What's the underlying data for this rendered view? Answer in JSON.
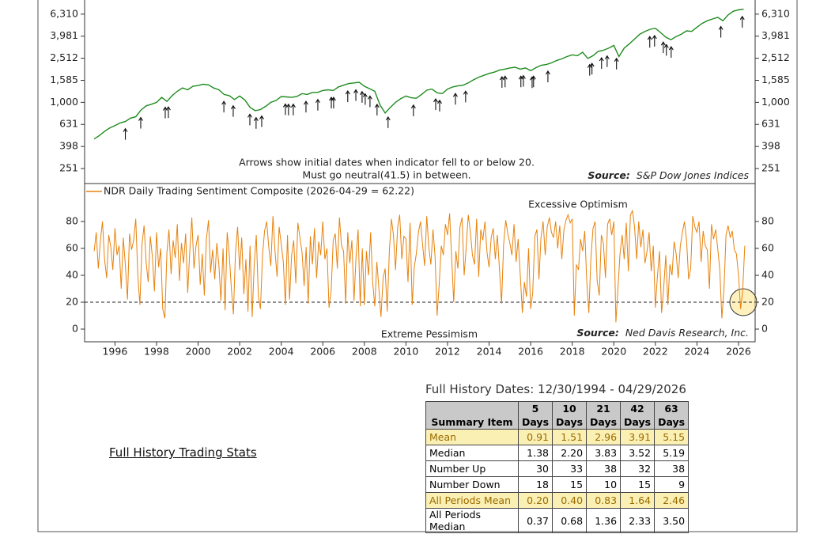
{
  "chart_data": [
    {
      "type": "line",
      "scale": "log",
      "color": "#1f8c1f",
      "annotation_lines": [
        "Arrows show initial dates when indicator fell to or below 20.",
        "Must go neutral(41.5) in between."
      ],
      "source_label": "Source:",
      "source": "S&P Dow Jones Indices",
      "xlim": [
        1994.54,
        2026.8
      ],
      "ylim": [
        183.5,
        10000
      ],
      "yticks": [
        251,
        398,
        631,
        {
          "value": 1000,
          "label": "1,000"
        },
        {
          "value": 1585,
          "label": "1,585"
        },
        {
          "value": 2512,
          "label": "2,512"
        },
        {
          "value": 3981,
          "label": "3,981"
        },
        {
          "value": 6310,
          "label": "6,310"
        }
      ],
      "x": [
        1995,
        1995.25,
        1995.5,
        1995.75,
        1996,
        1996.25,
        1996.5,
        1996.75,
        1997,
        1997.25,
        1997.5,
        1997.75,
        1998,
        1998.25,
        1998.5,
        1998.75,
        1999,
        1999.25,
        1999.5,
        1999.75,
        2000,
        2000.25,
        2000.5,
        2000.75,
        2001,
        2001.25,
        2001.5,
        2001.75,
        2002,
        2002.25,
        2002.5,
        2002.75,
        2003,
        2003.25,
        2003.5,
        2003.75,
        2004,
        2004.25,
        2004.5,
        2004.75,
        2005,
        2005.25,
        2005.5,
        2005.75,
        2006,
        2006.25,
        2006.5,
        2006.75,
        2007,
        2007.25,
        2007.5,
        2007.75,
        2008,
        2008.25,
        2008.5,
        2008.75,
        2009,
        2009.25,
        2009.5,
        2009.75,
        2010,
        2010.25,
        2010.5,
        2010.75,
        2011,
        2011.25,
        2011.5,
        2011.75,
        2012,
        2012.25,
        2012.5,
        2012.75,
        2013,
        2013.25,
        2013.5,
        2013.75,
        2014,
        2014.25,
        2014.5,
        2014.75,
        2015,
        2015.25,
        2015.5,
        2015.75,
        2016,
        2016.25,
        2016.5,
        2016.75,
        2017,
        2017.25,
        2017.5,
        2017.75,
        2018,
        2018.25,
        2018.5,
        2018.75,
        2019,
        2019.25,
        2019.5,
        2019.75,
        2020,
        2020.25,
        2020.5,
        2020.75,
        2021,
        2021.25,
        2021.5,
        2021.75,
        2022,
        2022.25,
        2022.5,
        2022.75,
        2023,
        2023.25,
        2023.5,
        2023.75,
        2024,
        2024.25,
        2024.5,
        2024.75,
        2025,
        2025.25,
        2025.5,
        2025.75,
        2026,
        2026.25
      ],
      "values": [
        465,
        500,
        545,
        585,
        615,
        650,
        670,
        720,
        740,
        850,
        930,
        960,
        1000,
        1110,
        1020,
        1150,
        1260,
        1350,
        1300,
        1400,
        1420,
        1460,
        1440,
        1350,
        1300,
        1180,
        1150,
        1060,
        1140,
        1050,
        900,
        840,
        860,
        920,
        1000,
        1040,
        1130,
        1120,
        1110,
        1130,
        1200,
        1180,
        1230,
        1230,
        1280,
        1300,
        1280,
        1380,
        1430,
        1480,
        1500,
        1520,
        1400,
        1330,
        1260,
        950,
        800,
        900,
        1000,
        1080,
        1140,
        1100,
        1090,
        1180,
        1290,
        1320,
        1220,
        1200,
        1320,
        1380,
        1410,
        1430,
        1500,
        1600,
        1690,
        1760,
        1830,
        1880,
        1960,
        2000,
        2050,
        2080,
        2000,
        2050,
        1940,
        2060,
        2170,
        2200,
        2280,
        2400,
        2480,
        2600,
        2700,
        2650,
        2850,
        2500,
        2650,
        2900,
        2970,
        3100,
        3280,
        2600,
        3100,
        3400,
        3750,
        4150,
        4400,
        4600,
        4700,
        4300,
        3900,
        3700,
        3950,
        4150,
        4450,
        4400,
        4800,
        5200,
        5500,
        5700,
        5900,
        5500,
        6200,
        6700,
        6900,
        7000
      ],
      "arrow_x": [
        1996.5,
        1997.24,
        1998.42,
        1998.57,
        2001.24,
        2001.69,
        2002.49,
        2002.79,
        2003.06,
        2004.2,
        2004.35,
        2004.58,
        2005.19,
        2005.76,
        2006.41,
        2006.52,
        2007.2,
        2007.59,
        2007.89,
        2008.04,
        2008.27,
        2008.61,
        2009.14,
        2010.36,
        2011.43,
        2011.62,
        2012.38,
        2012.87,
        2014.62,
        2014.77,
        2015.53,
        2015.65,
        2016.07,
        2016.14,
        2016.83,
        2018.84,
        2018.95,
        2019.41,
        2019.68,
        2020.13,
        2021.73,
        2021.96,
        2022.38,
        2022.53,
        2022.76,
        2025.15,
        2026.18
      ]
    },
    {
      "type": "line",
      "threshold": 20,
      "upper_label": "Excessive Optimism",
      "lower_label": "Extreme Pessimism",
      "source_label": "Source:",
      "source": "Ned Davis Research, Inc.",
      "xlim": [
        1994.54,
        2026.8
      ],
      "ylim": [
        -9.4,
        108.2
      ],
      "xticks": [
        1996,
        1998,
        2000,
        2002,
        2004,
        2006,
        2008,
        2010,
        2012,
        2014,
        2016,
        2018,
        2020,
        2022,
        2024,
        2026
      ],
      "yticks": [
        0,
        20,
        40,
        60,
        80
      ],
      "x": [
        1995,
        1995.1,
        1995.2,
        1995.3,
        1995.4,
        1995.5,
        1995.6,
        1995.7,
        1995.8,
        1995.9,
        1996,
        1996.1,
        1996.2,
        1996.3,
        1996.4,
        1996.5,
        1996.6,
        1996.7,
        1996.8,
        1996.9,
        1997,
        1997.1,
        1997.2,
        1997.3,
        1997.4,
        1997.5,
        1997.6,
        1997.7,
        1997.8,
        1997.9,
        1998,
        1998.1,
        1998.2,
        1998.3,
        1998.4,
        1998.5,
        1998.6,
        1998.7,
        1998.8,
        1998.9,
        1999,
        1999.1,
        1999.2,
        1999.3,
        1999.4,
        1999.5,
        1999.6,
        1999.7,
        1999.8,
        1999.9,
        2000,
        2000.1,
        2000.2,
        2000.3,
        2000.4,
        2000.5,
        2000.6,
        2000.7,
        2000.8,
        2000.9,
        2001,
        2001.1,
        2001.2,
        2001.3,
        2001.4,
        2001.5,
        2001.6,
        2001.7,
        2001.8,
        2001.9,
        2002,
        2002.1,
        2002.2,
        2002.3,
        2002.4,
        2002.5,
        2002.6,
        2002.7,
        2002.8,
        2002.9,
        2003,
        2003.1,
        2003.2,
        2003.3,
        2003.4,
        2003.5,
        2003.6,
        2003.7,
        2003.8,
        2003.9,
        2004,
        2004.1,
        2004.2,
        2004.3,
        2004.4,
        2004.5,
        2004.6,
        2004.7,
        2004.8,
        2004.9,
        2005,
        2005.1,
        2005.2,
        2005.3,
        2005.4,
        2005.5,
        2005.6,
        2005.7,
        2005.8,
        2005.9,
        2006,
        2006.1,
        2006.2,
        2006.3,
        2006.4,
        2006.5,
        2006.6,
        2006.7,
        2006.8,
        2006.9,
        2007,
        2007.1,
        2007.2,
        2007.3,
        2007.4,
        2007.5,
        2007.6,
        2007.7,
        2007.8,
        2007.9,
        2008,
        2008.1,
        2008.2,
        2008.3,
        2008.4,
        2008.5,
        2008.6,
        2008.7,
        2008.8,
        2008.9,
        2009,
        2009.1,
        2009.2,
        2009.3,
        2009.4,
        2009.5,
        2009.6,
        2009.7,
        2009.8,
        2009.9,
        2010,
        2010.1,
        2010.2,
        2010.3,
        2010.4,
        2010.5,
        2010.6,
        2010.7,
        2010.8,
        2010.9,
        2011,
        2011.1,
        2011.2,
        2011.3,
        2011.4,
        2011.5,
        2011.6,
        2011.7,
        2011.8,
        2011.9,
        2012,
        2012.1,
        2012.2,
        2012.3,
        2012.4,
        2012.5,
        2012.6,
        2012.7,
        2012.8,
        2012.9,
        2013,
        2013.1,
        2013.2,
        2013.3,
        2013.4,
        2013.5,
        2013.6,
        2013.7,
        2013.8,
        2013.9,
        2014,
        2014.1,
        2014.2,
        2014.3,
        2014.4,
        2014.5,
        2014.6,
        2014.7,
        2014.8,
        2014.9,
        2015,
        2015.1,
        2015.2,
        2015.3,
        2015.4,
        2015.5,
        2015.6,
        2015.7,
        2015.8,
        2015.9,
        2016,
        2016.1,
        2016.2,
        2016.3,
        2016.4,
        2016.5,
        2016.6,
        2016.7,
        2016.8,
        2016.9,
        2017,
        2017.1,
        2017.2,
        2017.3,
        2017.4,
        2017.5,
        2017.6,
        2017.7,
        2017.8,
        2017.9,
        2018,
        2018.1,
        2018.2,
        2018.3,
        2018.4,
        2018.5,
        2018.6,
        2018.7,
        2018.8,
        2018.9,
        2019,
        2019.1,
        2019.2,
        2019.3,
        2019.4,
        2019.5,
        2019.6,
        2019.7,
        2019.8,
        2019.9,
        2020,
        2020.1,
        2020.2,
        2020.3,
        2020.4,
        2020.5,
        2020.6,
        2020.7,
        2020.8,
        2020.9,
        2021,
        2021.1,
        2021.2,
        2021.3,
        2021.4,
        2021.5,
        2021.6,
        2021.7,
        2021.8,
        2021.9,
        2022,
        2022.1,
        2022.2,
        2022.3,
        2022.4,
        2022.5,
        2022.6,
        2022.7,
        2022.8,
        2022.9,
        2023,
        2023.1,
        2023.2,
        2023.3,
        2023.4,
        2023.5,
        2023.6,
        2023.7,
        2023.8,
        2023.9,
        2024,
        2024.1,
        2024.2,
        2024.3,
        2024.4,
        2024.5,
        2024.6,
        2024.7,
        2024.8,
        2024.9,
        2025,
        2025.1,
        2025.2,
        2025.3,
        2025.4,
        2025.5,
        2025.6,
        2025.7,
        2025.8,
        2025.9,
        2026,
        2026.1,
        2026.2,
        2026.3
      ],
      "series": [
        {
          "name": "NDR Daily Trading Sentiment Composite (2026-04-29 = 62.22)",
          "color": "#e8820c",
          "values": [
            58,
            72,
            45,
            66,
            80,
            52,
            38,
            70,
            61,
            44,
            75,
            55,
            62,
            30,
            68,
            48,
            22,
            71,
            59,
            66,
            82,
            40,
            18,
            63,
            77,
            50,
            35,
            69,
            54,
            28,
            72,
            46,
            60,
            15,
            8,
            57,
            74,
            41,
            66,
            53,
            78,
            36,
            64,
            49,
            71,
            27,
            58,
            83,
            45,
            62,
            70,
            33,
            56,
            25,
            67,
            81,
            42,
            59,
            37,
            64,
            48,
            21,
            60,
            14,
            72,
            55,
            30,
            11,
            57,
            76,
            44,
            68,
            26,
            52,
            13,
            62,
            9,
            48,
            70,
            24,
            15,
            55,
            73,
            80,
            61,
            47,
            84,
            58,
            39,
            76,
            63,
            50,
            18,
            70,
            22,
            55,
            66,
            34,
            79,
            68,
            57,
            32,
            61,
            19,
            69,
            48,
            75,
            38,
            65,
            55,
            80,
            52,
            60,
            16,
            28,
            66,
            71,
            45,
            83,
            62,
            58,
            19,
            72,
            49,
            66,
            21,
            54,
            74,
            17,
            60,
            18,
            58,
            40,
            72,
            35,
            17,
            50,
            30,
            9,
            38,
            45,
            13,
            58,
            82,
            70,
            44,
            76,
            85,
            52,
            69,
            67,
            35,
            79,
            18,
            46,
            56,
            72,
            80,
            63,
            47,
            84,
            61,
            48,
            74,
            54,
            10,
            33,
            62,
            55,
            78,
            70,
            86,
            53,
            20,
            58,
            45,
            76,
            83,
            40,
            61,
            85,
            72,
            55,
            48,
            82,
            39,
            74,
            66,
            80,
            57,
            46,
            68,
            75,
            52,
            70,
            44,
            19,
            63,
            81,
            71,
            64,
            55,
            78,
            50,
            67,
            40,
            12,
            35,
            24,
            60,
            15,
            27,
            69,
            74,
            37,
            68,
            80,
            55,
            76,
            83,
            72,
            68,
            80,
            60,
            77,
            52,
            74,
            81,
            85,
            79,
            82,
            10,
            48,
            44,
            67,
            58,
            73,
            35,
            12,
            53,
            75,
            80,
            36,
            25,
            70,
            64,
            38,
            78,
            82,
            70,
            80,
            5,
            30,
            56,
            70,
            52,
            79,
            43,
            85,
            88,
            76,
            52,
            80,
            61,
            74,
            49,
            58,
            72,
            43,
            62,
            16,
            40,
            58,
            12,
            30,
            55,
            18,
            48,
            40,
            65,
            56,
            38,
            62,
            72,
            80,
            66,
            37,
            45,
            84,
            76,
            72,
            80,
            50,
            73,
            62,
            59,
            30,
            78,
            67,
            74,
            60,
            44,
            8,
            30,
            70,
            77,
            68,
            73,
            59,
            56,
            40,
            15,
            28,
            62
          ]
        }
      ]
    }
  ],
  "table": {
    "title": "Full History Dates: 12/30/1994 - 04/29/2026",
    "heading": "Full History Trading Stats",
    "highlight_rows": [
      0,
      4
    ],
    "columns": [
      "Summary Item",
      "5 Days",
      "10 Days",
      "21 Days",
      "42 Days",
      "63 Days"
    ],
    "rows": [
      [
        "Mean",
        "0.91",
        "1.51",
        "2.96",
        "3.91",
        "5.15"
      ],
      [
        "Median",
        "1.38",
        "2.20",
        "3.83",
        "3.52",
        "5.19"
      ],
      [
        "Number Up",
        "30",
        "33",
        "38",
        "32",
        "38"
      ],
      [
        "Number Down",
        "18",
        "15",
        "10",
        "15",
        "9"
      ],
      [
        "All Periods Mean",
        "0.20",
        "0.40",
        "0.83",
        "1.64",
        "2.46"
      ],
      [
        "All Periods Median",
        "0.37",
        "0.68",
        "1.36",
        "2.33",
        "3.50"
      ]
    ]
  }
}
